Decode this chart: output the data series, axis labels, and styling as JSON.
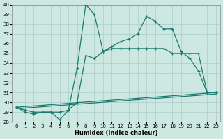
{
  "xlabel": "Humidex (Indice chaleur)",
  "background_color": "#cce8e0",
  "grid_color": "#aacccc",
  "line_color": "#1a7a6e",
  "xlim": [
    -0.5,
    23.5
  ],
  "ylim": [
    28,
    40
  ],
  "xticks": [
    0,
    1,
    2,
    3,
    4,
    5,
    6,
    7,
    8,
    9,
    10,
    11,
    12,
    13,
    14,
    15,
    16,
    17,
    18,
    19,
    20,
    21,
    22,
    23
  ],
  "yticks": [
    28,
    29,
    30,
    31,
    32,
    33,
    34,
    35,
    36,
    37,
    38,
    39,
    40
  ],
  "series1": [
    [
      0,
      29.5
    ],
    [
      1,
      29.0
    ],
    [
      2,
      28.8
    ],
    [
      3,
      29.0
    ],
    [
      4,
      29.0
    ],
    [
      5,
      28.2
    ],
    [
      6,
      29.2
    ],
    [
      7,
      33.5
    ],
    [
      8,
      40.0
    ],
    [
      9,
      39.0
    ],
    [
      10,
      35.2
    ],
    [
      11,
      35.7
    ],
    [
      12,
      36.2
    ],
    [
      13,
      36.5
    ],
    [
      14,
      37.0
    ],
    [
      15,
      38.8
    ],
    [
      16,
      38.3
    ],
    [
      17,
      37.5
    ],
    [
      18,
      37.5
    ],
    [
      19,
      35.2
    ],
    [
      20,
      34.5
    ],
    [
      21,
      33.2
    ],
    [
      22,
      31.0
    ],
    [
      23,
      31.0
    ]
  ],
  "series2": [
    [
      0,
      29.5
    ],
    [
      1,
      29.2
    ],
    [
      2,
      29.0
    ],
    [
      3,
      29.0
    ],
    [
      4,
      29.0
    ],
    [
      5,
      29.0
    ],
    [
      6,
      29.2
    ],
    [
      7,
      30.0
    ],
    [
      8,
      34.8
    ],
    [
      9,
      34.5
    ],
    [
      10,
      35.2
    ],
    [
      11,
      35.5
    ],
    [
      12,
      35.5
    ],
    [
      13,
      35.5
    ],
    [
      14,
      35.5
    ],
    [
      15,
      35.5
    ],
    [
      16,
      35.5
    ],
    [
      17,
      35.5
    ],
    [
      18,
      35.0
    ],
    [
      19,
      35.0
    ],
    [
      20,
      35.0
    ],
    [
      21,
      35.0
    ],
    [
      22,
      31.0
    ],
    [
      23,
      31.0
    ]
  ],
  "series3": [
    [
      0,
      29.5
    ],
    [
      23,
      31.0
    ]
  ],
  "series4": [
    [
      0,
      29.5
    ],
    [
      23,
      31.0
    ]
  ],
  "xlabel_fontsize": 6,
  "tick_fontsize": 5
}
